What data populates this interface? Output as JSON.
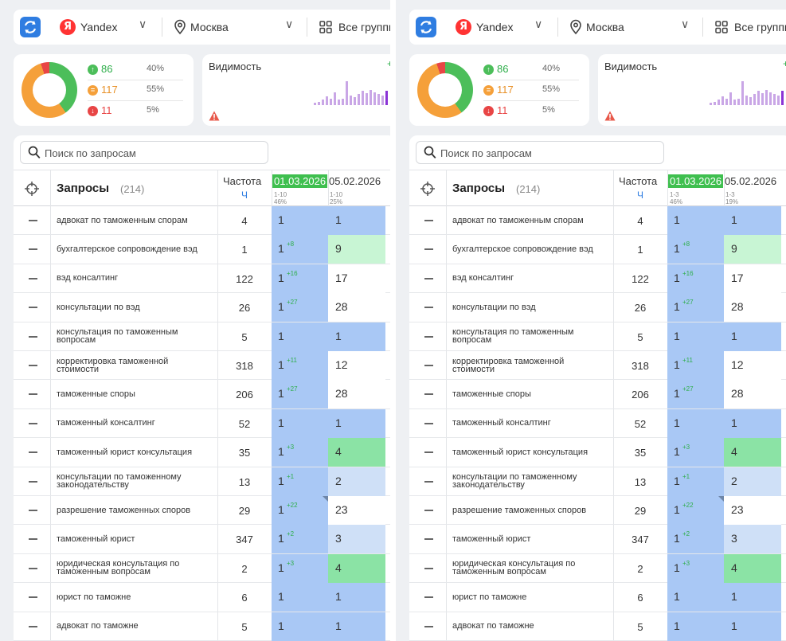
{
  "toolbar": {
    "engine": "Yandex",
    "engine_logo_letter": "Я",
    "city": "Москва",
    "groups": "Все группы"
  },
  "stats": {
    "top": {
      "count": "86",
      "pct": "40%",
      "color": "#4cbe5a"
    },
    "mid": {
      "count": "117",
      "pct": "55%",
      "color": "#f5a03a"
    },
    "low": {
      "count": "11",
      "pct": "5%",
      "color": "#e84545"
    }
  },
  "visibility": {
    "title": "Видимость",
    "change": "+",
    "bars": [
      2,
      3,
      5,
      8,
      6,
      12,
      5,
      6,
      22,
      9,
      7,
      10,
      13,
      11,
      14,
      12,
      10,
      9,
      13
    ]
  },
  "search": {
    "placeholder": "Поиск по запросам"
  },
  "table": {
    "queries_label": "Запросы",
    "queries_count": "(214)",
    "freq_label": "Частота",
    "freq_sub": "Ч",
    "date1": "01.03.2026",
    "date2": "05.02.2026"
  },
  "panels": [
    {
      "date1_range": "1-10",
      "date1_pct": "46%",
      "date2_range": "1-10",
      "date2_pct": "25%"
    },
    {
      "date1_range": "1-3",
      "date1_pct": "46%",
      "date2_range": "1-3",
      "date2_pct": "19%"
    }
  ],
  "rows": [
    {
      "query": "адвокат по таможенным спорам",
      "freq": "4",
      "pos1": "1",
      "delta": "",
      "pos2": "1",
      "bg": "blue",
      "mark": false
    },
    {
      "query": "бухгалтерское сопровождение вэд",
      "freq": "1",
      "pos1": "1",
      "delta": "+8",
      "pos2": "9",
      "bg": "mint",
      "mark": false
    },
    {
      "query": "вэд консалтинг",
      "freq": "122",
      "pos1": "1",
      "delta": "+16",
      "pos2": "17",
      "bg": "white",
      "mark": false
    },
    {
      "query": "консультации по вэд",
      "freq": "26",
      "pos1": "1",
      "delta": "+27",
      "pos2": "28",
      "bg": "white",
      "mark": false
    },
    {
      "query": "консультация по таможенным вопросам",
      "freq": "5",
      "pos1": "1",
      "delta": "",
      "pos2": "1",
      "bg": "blue",
      "mark": false
    },
    {
      "query": "корректировка таможенной стоимости",
      "freq": "318",
      "pos1": "1",
      "delta": "+11",
      "pos2": "12",
      "bg": "white",
      "mark": false
    },
    {
      "query": "таможенные споры",
      "freq": "206",
      "pos1": "1",
      "delta": "+27",
      "pos2": "28",
      "bg": "white",
      "mark": false
    },
    {
      "query": "таможенный консалтинг",
      "freq": "52",
      "pos1": "1",
      "delta": "",
      "pos2": "1",
      "bg": "blue",
      "mark": false
    },
    {
      "query": "таможенный юрист консультация",
      "freq": "35",
      "pos1": "1",
      "delta": "+3",
      "pos2": "4",
      "bg": "green",
      "mark": false
    },
    {
      "query": "консультации по таможенному законодательству",
      "freq": "13",
      "pos1": "1",
      "delta": "+1",
      "pos2": "2",
      "bg": "lightblue",
      "mark": false
    },
    {
      "query": "разрешение таможенных споров",
      "freq": "29",
      "pos1": "1",
      "delta": "+22",
      "pos2": "23",
      "bg": "white",
      "mark": true
    },
    {
      "query": "таможенный юрист",
      "freq": "347",
      "pos1": "1",
      "delta": "+2",
      "pos2": "3",
      "bg": "lightblue",
      "mark": false
    },
    {
      "query": "юридическая консультация по таможенным вопросам",
      "freq": "2",
      "pos1": "1",
      "delta": "+3",
      "pos2": "4",
      "bg": "green",
      "mark": false
    },
    {
      "query": "юрист по таможне",
      "freq": "6",
      "pos1": "1",
      "delta": "",
      "pos2": "1",
      "bg": "blue",
      "mark": false
    },
    {
      "query": "адвокат по таможне",
      "freq": "5",
      "pos1": "1",
      "delta": "",
      "pos2": "1",
      "bg": "blue",
      "mark": false
    }
  ]
}
